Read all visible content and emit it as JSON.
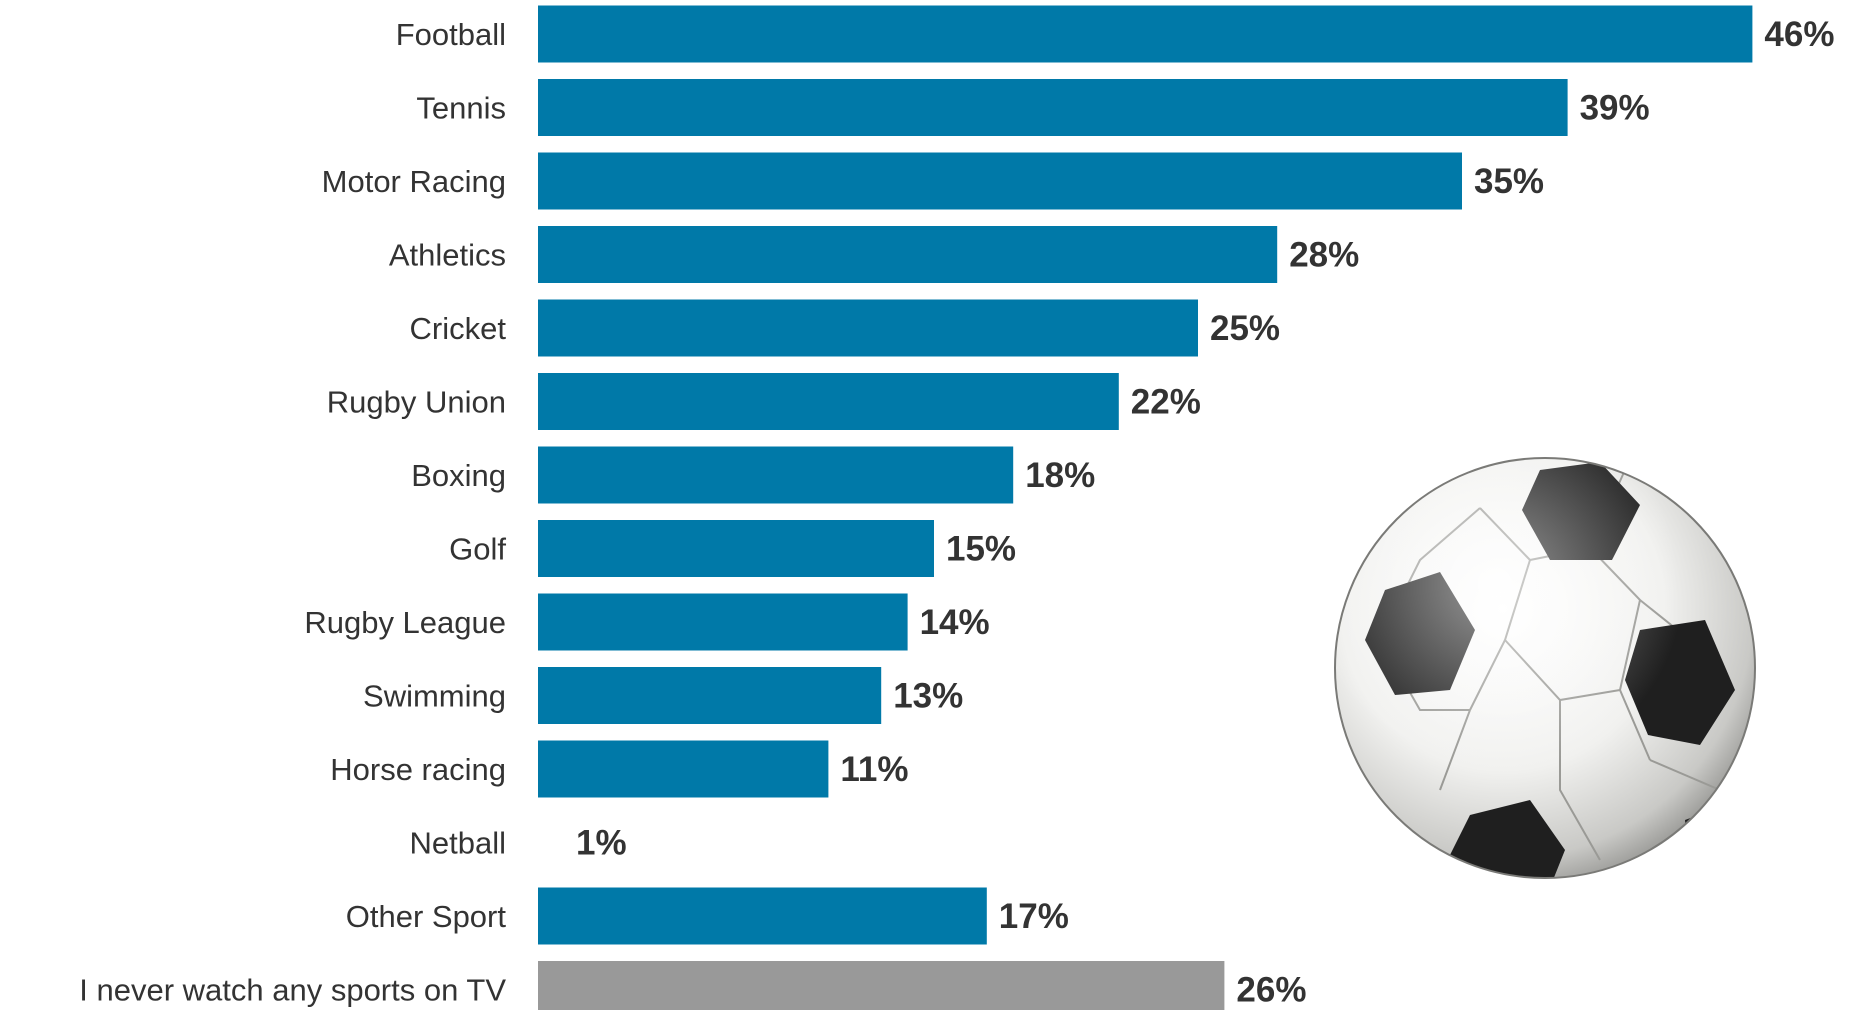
{
  "chart_data": {
    "type": "bar",
    "orientation": "horizontal",
    "categories": [
      "Football",
      "Tennis",
      "Motor Racing",
      "Athletics",
      "Cricket",
      "Rugby Union",
      "Boxing",
      "Golf",
      "Rugby League",
      "Swimming",
      "Horse racing",
      "Netball",
      "Other Sport",
      "I never watch any sports on TV"
    ],
    "values": [
      46,
      39,
      35,
      28,
      25,
      22,
      18,
      15,
      14,
      13,
      11,
      1,
      17,
      26
    ],
    "value_labels": [
      "46%",
      "39%",
      "35%",
      "28%",
      "25%",
      "22%",
      "18%",
      "15%",
      "14%",
      "13%",
      "11%",
      "1%",
      "17%",
      "26%"
    ],
    "bars_drawn": [
      true,
      true,
      true,
      true,
      true,
      true,
      true,
      true,
      true,
      true,
      true,
      false,
      true,
      true
    ],
    "bar_colors": [
      "#0079a8",
      "#0079a8",
      "#0079a8",
      "#0079a8",
      "#0079a8",
      "#0079a8",
      "#0079a8",
      "#0079a8",
      "#0079a8",
      "#0079a8",
      "#0079a8",
      "#0079a8",
      "#0079a8",
      "#999999"
    ],
    "title": "",
    "xlabel": "",
    "ylabel": "",
    "grid": false,
    "legend": "none"
  },
  "image": {
    "icon": "soccer-ball-icon"
  }
}
